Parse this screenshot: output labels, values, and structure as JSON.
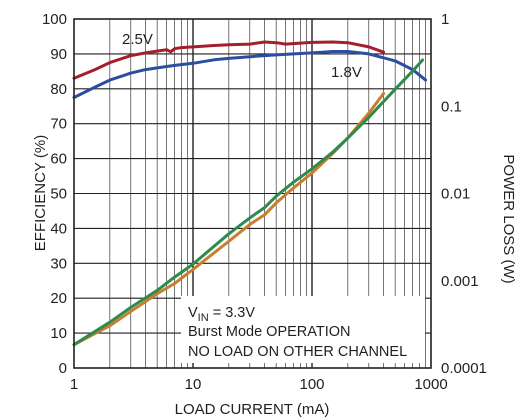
{
  "chart_data": {
    "type": "line",
    "xlabel": "LOAD CURRENT (mA)",
    "ylabel": "EFFICIENCY (%)",
    "y2label": "POWER LOSS (W)",
    "x_scale": "log",
    "xlim": [
      1,
      1000
    ],
    "ylim": [
      0,
      100
    ],
    "y2_scale": "log",
    "y2lim": [
      0.0001,
      1
    ],
    "grid": true,
    "x_ticks": [
      "1",
      "10",
      "100",
      "1000"
    ],
    "y_ticks": [
      "0",
      "10",
      "20",
      "30",
      "40",
      "50",
      "60",
      "70",
      "80",
      "90",
      "100"
    ],
    "y2_ticks": [
      "0.0001",
      "0.001",
      "0.01",
      "0.1",
      "1"
    ],
    "series": [
      {
        "name": "2.5V",
        "axis": "left",
        "color": "#a31f2b",
        "x": [
          1,
          1.5,
          2,
          3,
          4,
          5,
          6,
          6.5,
          7,
          8,
          10,
          15,
          20,
          30,
          40,
          50,
          60,
          80,
          100,
          150,
          200,
          300,
          400
        ],
        "y": [
          83,
          85.5,
          87.5,
          89.5,
          90.3,
          90.8,
          91.2,
          90.6,
          91.5,
          91.8,
          92,
          92.4,
          92.6,
          92.8,
          93.4,
          93.2,
          92.8,
          93.1,
          93.3,
          93.4,
          93.2,
          92,
          90.5
        ]
      },
      {
        "name": "1.8V",
        "axis": "left",
        "color": "#2c4ea0",
        "x": [
          1,
          1.5,
          2,
          3,
          4,
          5,
          7,
          10,
          15,
          20,
          30,
          40,
          50,
          70,
          100,
          150,
          200,
          300,
          500,
          700,
          900
        ],
        "y": [
          77.5,
          80.5,
          82.5,
          84.5,
          85.5,
          86,
          86.7,
          87.3,
          88.3,
          88.7,
          89.2,
          89.5,
          89.7,
          90,
          90.3,
          90.7,
          90.7,
          90,
          88,
          85.5,
          82.5
        ]
      },
      {
        "name": "",
        "axis": "right",
        "color": "#c87e2e",
        "x": [
          1,
          2,
          3,
          5,
          7,
          10,
          20,
          30,
          40,
          50,
          70,
          100,
          150,
          200,
          300,
          400
        ],
        "y": [
          0.000185,
          0.000305,
          0.000445,
          0.00071,
          0.00093,
          0.00135,
          0.00283,
          0.00441,
          0.0057,
          0.0078,
          0.0116,
          0.0172,
          0.029,
          0.0433,
          0.0835,
          0.14
        ]
      },
      {
        "name": "",
        "axis": "right",
        "color": "#2f8a4e",
        "x": [
          1,
          2,
          3,
          5,
          7,
          10,
          20,
          30,
          40,
          50,
          70,
          100,
          150,
          200,
          300,
          500,
          700,
          850
        ],
        "y": [
          0.000185,
          0.000335,
          0.000495,
          0.000775,
          0.0011,
          0.00155,
          0.00345,
          0.00525,
          0.0069,
          0.0093,
          0.0135,
          0.0192,
          0.03,
          0.0433,
          0.0748,
          0.157,
          0.253,
          0.339
        ]
      }
    ],
    "annotations": {
      "vin_main": "V",
      "vin_sub": "IN",
      "vin_rest": " = 3.3V",
      "mode": "Burst Mode OPERATION",
      "load": "NO LOAD ON OTHER CHANNEL"
    }
  }
}
